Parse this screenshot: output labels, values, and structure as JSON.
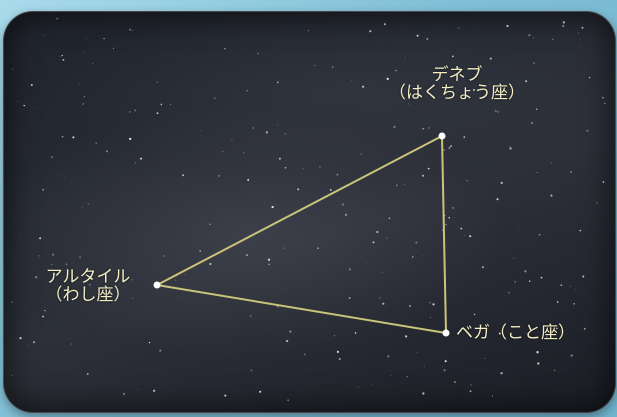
{
  "stars": {
    "deneb": {
      "name": "デネブ",
      "constellation": "（はくちょう座）"
    },
    "altair": {
      "name": "アルタイル",
      "constellation": "（わし座）"
    },
    "vega": {
      "label": "ベガ（こと座）"
    }
  },
  "colors": {
    "line": "#c9c47a",
    "label_text": "#f3eec4",
    "sky": "#262a33",
    "background": "#8fc9dc"
  }
}
